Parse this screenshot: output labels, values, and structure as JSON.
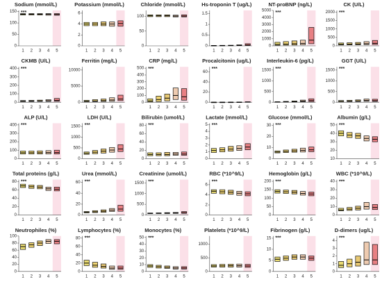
{
  "group_colors": [
    "#d8c000",
    "#e6b400",
    "#d49a00",
    "#e0a070",
    "#d83030"
  ],
  "chart_data": [
    {
      "type": "box",
      "title": "Sodium (mmol/L)",
      "annotation": "***",
      "categories": [
        "1",
        "2",
        "3",
        "4",
        "5"
      ],
      "ylim": [
        0,
        155
      ],
      "yticks": [
        0,
        50,
        100,
        150
      ],
      "q1": [
        135,
        135,
        135,
        134,
        134
      ],
      "median": [
        138,
        138,
        138,
        138,
        137
      ],
      "q3": [
        141,
        141,
        141,
        141,
        141
      ]
    },
    {
      "type": "box",
      "title": "Potassium (mmol/L)",
      "categories": [
        "1",
        "2",
        "3",
        "4",
        "5"
      ],
      "ylim": [
        0,
        6.5
      ],
      "yticks": [
        0,
        2,
        4,
        6
      ],
      "q1": [
        3.7,
        3.7,
        3.7,
        3.6,
        3.6
      ],
      "median": [
        4,
        4,
        4,
        4,
        4.1
      ],
      "q3": [
        4.3,
        4.3,
        4.4,
        4.4,
        4.6
      ]
    },
    {
      "type": "box",
      "title": "Chloride (mmol/L)",
      "categories": [
        "1",
        "2",
        "3",
        "4",
        "5"
      ],
      "ylim": [
        0,
        120
      ],
      "yticks": [
        0,
        50,
        100
      ],
      "q1": [
        99,
        99,
        99,
        98,
        98
      ],
      "median": [
        102,
        102,
        102,
        101,
        101
      ],
      "q3": [
        105,
        105,
        105,
        104,
        105
      ]
    },
    {
      "type": "box",
      "title": "Hs-troponin T (ug/L)",
      "categories": [
        "1",
        "2",
        "3",
        "4",
        "5"
      ],
      "ylim": [
        0,
        1.65
      ],
      "yticks": [
        0,
        0.5,
        1,
        1.5
      ],
      "q1": [
        0.005,
        0.005,
        0.007,
        0.01,
        0.015
      ],
      "median": [
        0.01,
        0.012,
        0.015,
        0.02,
        0.04
      ],
      "q3": [
        0.02,
        0.025,
        0.03,
        0.05,
        0.1
      ]
    },
    {
      "type": "box",
      "title": "NT-proBNP (ng/L)",
      "annotation": "***",
      "categories": [
        "1",
        "2",
        "3",
        "4",
        "5"
      ],
      "ylim": [
        0,
        5000
      ],
      "yticks": [
        0,
        1000,
        2000,
        3000,
        4000,
        5000
      ],
      "q1": [
        80,
        100,
        120,
        150,
        300
      ],
      "median": [
        200,
        250,
        300,
        350,
        800
      ],
      "q3": [
        500,
        600,
        700,
        800,
        2600
      ]
    },
    {
      "type": "box",
      "title": "CK (U/L)",
      "annotation": "***",
      "categories": [
        "1",
        "2",
        "3",
        "4",
        "5"
      ],
      "ylim": [
        0,
        2100
      ],
      "yticks": [
        0,
        500,
        1000,
        1500,
        2000
      ],
      "q1": [
        50,
        55,
        60,
        70,
        80
      ],
      "median": [
        90,
        100,
        110,
        130,
        150
      ],
      "q3": [
        170,
        180,
        200,
        250,
        320
      ]
    },
    {
      "type": "box",
      "title": "CKMB (U/L)",
      "annotation": "***",
      "categories": [
        "1",
        "2",
        "3",
        "4",
        "5"
      ],
      "ylim": [
        0,
        420
      ],
      "yticks": [
        0,
        100,
        200,
        300,
        400
      ],
      "q1": [
        8,
        9,
        10,
        11,
        12
      ],
      "median": [
        13,
        14,
        15,
        17,
        20
      ],
      "q3": [
        20,
        22,
        25,
        30,
        45
      ]
    },
    {
      "type": "box",
      "title": "Ferritin (mg/L)",
      "categories": [
        "1",
        "2",
        "3",
        "4",
        "5"
      ],
      "ylim": [
        0,
        11000
      ],
      "yticks": [
        0,
        5000,
        10000
      ],
      "q1": [
        150,
        200,
        250,
        300,
        500
      ],
      "median": [
        300,
        400,
        500,
        700,
        1000
      ],
      "q3": [
        600,
        800,
        1000,
        1400,
        2200
      ]
    },
    {
      "type": "box",
      "title": "CRP (mg/L)",
      "annotation": "***",
      "categories": [
        "1",
        "2",
        "3",
        "4",
        "5"
      ],
      "ylim": [
        0,
        520
      ],
      "yticks": [
        0,
        100,
        200,
        300,
        400,
        500
      ],
      "q1": [
        5,
        10,
        20,
        40,
        30
      ],
      "median": [
        20,
        40,
        60,
        100,
        80
      ],
      "q3": [
        50,
        90,
        120,
        210,
        200
      ]
    },
    {
      "type": "box",
      "title": "Procalcitonin (ug/L)",
      "annotation": "***",
      "categories": [
        "1",
        "2",
        "3",
        "4",
        "5"
      ],
      "ylim": [
        0,
        70
      ],
      "yticks": [
        0,
        20,
        40,
        60
      ],
      "q1": [
        0.05,
        0.05,
        0.06,
        0.08,
        0.1
      ],
      "median": [
        0.08,
        0.1,
        0.12,
        0.2,
        0.3
      ],
      "q3": [
        0.15,
        0.2,
        0.3,
        0.5,
        1
      ]
    },
    {
      "type": "box",
      "title": "Interleukin-6 (pg/L)",
      "annotation": "***",
      "categories": [
        "1",
        "2",
        "3",
        "4",
        "5"
      ],
      "ylim": [
        0,
        1650
      ],
      "yticks": [
        0,
        500,
        1000,
        1500
      ],
      "q1": [
        5,
        8,
        12,
        20,
        30
      ],
      "median": [
        10,
        20,
        30,
        50,
        80
      ],
      "q3": [
        25,
        40,
        60,
        100,
        160
      ]
    },
    {
      "type": "box",
      "title": "GGT (U/L)",
      "annotation": "***",
      "categories": [
        "1",
        "2",
        "3",
        "4",
        "5"
      ],
      "ylim": [
        0,
        1650
      ],
      "yticks": [
        0,
        500,
        1000,
        1500
      ],
      "q1": [
        25,
        30,
        35,
        45,
        40
      ],
      "median": [
        40,
        50,
        60,
        80,
        70
      ],
      "q3": [
        80,
        90,
        110,
        150,
        140
      ]
    },
    {
      "type": "box",
      "title": "ALP (U/L)",
      "annotation": "***",
      "categories": [
        "1",
        "2",
        "3",
        "4",
        "5"
      ],
      "ylim": [
        0,
        420
      ],
      "yticks": [
        0,
        100,
        200,
        300,
        400
      ],
      "q1": [
        55,
        55,
        55,
        55,
        55
      ],
      "median": [
        70,
        70,
        70,
        72,
        72
      ],
      "q3": [
        90,
        90,
        92,
        95,
        100
      ]
    },
    {
      "type": "box",
      "title": "LDH (U/L)",
      "annotation": "***",
      "categories": [
        "1",
        "2",
        "3",
        "4",
        "5"
      ],
      "ylim": [
        0,
        1650
      ],
      "yticks": [
        0,
        500,
        1000,
        1500
      ],
      "q1": [
        200,
        230,
        260,
        300,
        330
      ],
      "median": [
        250,
        300,
        350,
        400,
        450
      ],
      "q3": [
        310,
        380,
        450,
        520,
        650
      ]
    },
    {
      "type": "box",
      "title": "Bilirubin (umol/L)",
      "annotation": "***",
      "categories": [
        "1",
        "2",
        "3",
        "4",
        "5"
      ],
      "ylim": [
        0,
        85
      ],
      "yticks": [
        0,
        20,
        40,
        60,
        80
      ],
      "q1": [
        7,
        7,
        7,
        8,
        8
      ],
      "median": [
        10,
        10,
        10,
        11,
        11
      ],
      "q3": [
        14,
        14,
        15,
        15,
        16
      ]
    },
    {
      "type": "box",
      "title": "Lactate (mmol/L)",
      "annotation": "***",
      "categories": [
        "1",
        "2",
        "3",
        "4",
        "5"
      ],
      "ylim": [
        0,
        5.2
      ],
      "yticks": [
        0,
        1,
        2,
        3,
        4,
        5
      ],
      "q1": [
        0.9,
        1,
        1.1,
        1.2,
        1.3
      ],
      "median": [
        1.2,
        1.3,
        1.4,
        1.5,
        1.7
      ],
      "q3": [
        1.5,
        1.6,
        1.8,
        1.9,
        2.2
      ]
    },
    {
      "type": "box",
      "title": "Glucose (mmol/L)",
      "annotation": "***",
      "categories": [
        "1",
        "2",
        "3",
        "4",
        "5"
      ],
      "ylim": [
        0,
        32
      ],
      "yticks": [
        0,
        10,
        20,
        30
      ],
      "q1": [
        5.2,
        5.5,
        5.8,
        6,
        6.3
      ],
      "median": [
        6,
        6.5,
        7,
        7.5,
        8
      ],
      "q3": [
        7,
        7.8,
        8.5,
        9.5,
        10.5
      ]
    },
    {
      "type": "box",
      "title": "Albumin (g/L)",
      "annotation": "***",
      "categories": [
        "1",
        "2",
        "3",
        "4",
        "5"
      ],
      "ylim": [
        10,
        52
      ],
      "yticks": [
        10,
        20,
        30,
        40,
        50
      ],
      "q1": [
        37,
        35,
        34,
        31,
        30
      ],
      "median": [
        40,
        38,
        37,
        34,
        33
      ],
      "q3": [
        43,
        41,
        40,
        37,
        36
      ]
    },
    {
      "type": "box",
      "title": "Total proteins (g/L)",
      "annotation": "***",
      "categories": [
        "1",
        "2",
        "3",
        "4",
        "5"
      ],
      "ylim": [
        0,
        85
      ],
      "yticks": [
        0,
        20,
        40,
        60,
        80
      ],
      "q1": [
        66,
        64,
        63,
        59,
        58
      ],
      "median": [
        70,
        68,
        67,
        63,
        62
      ],
      "q3": [
        74,
        72,
        71,
        67,
        67
      ]
    },
    {
      "type": "box",
      "title": "Urea (mmol/L)",
      "annotation": "***",
      "categories": [
        "1",
        "2",
        "3",
        "4",
        "5"
      ],
      "ylim": [
        0,
        65
      ],
      "yticks": [
        0,
        20,
        40,
        60
      ],
      "q1": [
        4,
        4.5,
        5,
        6.5,
        7
      ],
      "median": [
        5,
        6,
        7,
        9,
        11
      ],
      "q3": [
        6.5,
        8,
        9.5,
        12,
        18
      ]
    },
    {
      "type": "box",
      "title": "Creatinine (umol/L)",
      "annotation": "***",
      "categories": [
        "1",
        "2",
        "3",
        "4",
        "5"
      ],
      "ylim": [
        0,
        1650
      ],
      "yticks": [
        0,
        500,
        1000,
        1500
      ],
      "q1": [
        65,
        68,
        70,
        75,
        80
      ],
      "median": [
        80,
        85,
        90,
        95,
        110
      ],
      "q3": [
        95,
        100,
        110,
        120,
        160
      ]
    },
    {
      "type": "box",
      "title": "RBC (*10^9/L)",
      "annotation": "***",
      "categories": [
        "1",
        "2",
        "3",
        "4",
        "5"
      ],
      "ylim": [
        0,
        7
      ],
      "yticks": [
        0,
        2,
        4,
        6
      ],
      "q1": [
        4.3,
        4.2,
        4.1,
        3.9,
        3.8
      ],
      "median": [
        4.7,
        4.6,
        4.5,
        4.3,
        4.2
      ],
      "q3": [
        5,
        5,
        4.9,
        4.7,
        4.6
      ]
    },
    {
      "type": "box",
      "title": "Hemoglobin (g/L)",
      "annotation": "***",
      "categories": [
        "1",
        "2",
        "3",
        "4",
        "5"
      ],
      "ylim": [
        0,
        210
      ],
      "yticks": [
        0,
        50,
        100,
        150,
        200
      ],
      "q1": [
        130,
        128,
        125,
        118,
        114
      ],
      "median": [
        140,
        138,
        135,
        128,
        125
      ],
      "q3": [
        150,
        148,
        146,
        140,
        136
      ]
    },
    {
      "type": "box",
      "title": "WBC (*10^9/L)",
      "annotation": "***",
      "categories": [
        "1",
        "2",
        "3",
        "4",
        "5"
      ],
      "ylim": [
        0,
        42
      ],
      "yticks": [
        0,
        10,
        20,
        30,
        40
      ],
      "q1": [
        5,
        5.5,
        6,
        7,
        6.5
      ],
      "median": [
        6,
        7,
        8,
        10,
        9
      ],
      "q3": [
        8,
        9,
        10.5,
        15,
        12.5
      ]
    },
    {
      "type": "box",
      "title": "Neutrophiles (%)",
      "categories": [
        "1",
        "2",
        "3",
        "4",
        "5"
      ],
      "ylim": [
        0,
        100
      ],
      "yticks": [
        0,
        20,
        40,
        60,
        80,
        100
      ],
      "q1": [
        62,
        68,
        73,
        79,
        78
      ],
      "median": [
        70,
        75,
        80,
        85,
        85
      ],
      "q3": [
        77,
        81,
        86,
        90,
        90
      ]
    },
    {
      "type": "box",
      "title": "Lymphocytes (%)",
      "annotation": "***",
      "categories": [
        "1",
        "2",
        "3",
        "4",
        "5"
      ],
      "ylim": [
        0,
        85
      ],
      "yticks": [
        0,
        20,
        40,
        60,
        80
      ],
      "q1": [
        14,
        10,
        8,
        5,
        5
      ],
      "median": [
        20,
        15,
        12,
        8,
        8
      ],
      "q3": [
        27,
        22,
        18,
        13,
        13
      ]
    },
    {
      "type": "box",
      "title": "Monocytes (%)",
      "annotation": "***",
      "categories": [
        "1",
        "2",
        "3",
        "4",
        "5"
      ],
      "ylim": [
        0,
        52
      ],
      "yticks": [
        0,
        10,
        20,
        30,
        40,
        50
      ],
      "q1": [
        6,
        5,
        4.5,
        3.5,
        3.5
      ],
      "median": [
        8,
        7,
        6,
        5,
        5
      ],
      "q3": [
        10,
        9,
        8,
        7,
        7
      ]
    },
    {
      "type": "box",
      "title": "Platelets (*10^9/L)",
      "categories": [
        "1",
        "2",
        "3",
        "4",
        "5"
      ],
      "ylim": [
        0,
        1300
      ],
      "yticks": [
        0,
        500,
        1000
      ],
      "q1": [
        160,
        160,
        160,
        160,
        150
      ],
      "median": [
        200,
        205,
        210,
        210,
        200
      ],
      "q3": [
        250,
        260,
        265,
        270,
        260
      ]
    },
    {
      "type": "box",
      "title": "Fibrinogen (g/L)",
      "annotation": "***",
      "categories": [
        "1",
        "2",
        "3",
        "4",
        "5"
      ],
      "ylim": [
        0,
        16
      ],
      "yticks": [
        0,
        5,
        10,
        15
      ],
      "q1": [
        4.5,
        5,
        5.5,
        5.5,
        5
      ],
      "median": [
        5.5,
        6,
        6.5,
        6.5,
        6
      ],
      "q3": [
        6.5,
        7,
        7.5,
        7.5,
        7
      ]
    },
    {
      "type": "box",
      "title": "D-dimers (ug/L)",
      "annotation": "***",
      "categories": [
        "1",
        "2",
        "3",
        "4",
        "5"
      ],
      "ylim": [
        0,
        4.6
      ],
      "yticks": [
        0,
        1,
        2,
        3,
        4
      ],
      "q1": [
        0.5,
        0.6,
        0.7,
        0.9,
        0.9
      ],
      "median": [
        0.8,
        1,
        1.2,
        1.5,
        1.5
      ],
      "q3": [
        1.3,
        1.6,
        2,
        3.8,
        3.5
      ]
    }
  ]
}
